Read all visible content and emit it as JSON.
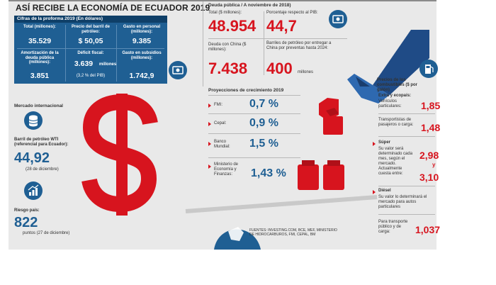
{
  "title": "ASÍ RECIBE LA ECONOMÍA DE ECUADOR 2019",
  "proforma": {
    "heading": "Cifras de la proforma 2019 (En dólares)",
    "total_label": "Total (millones):",
    "total_value": "35.529",
    "oil_label": "Precio del barril de petróleo:",
    "oil_value": "$ 50,05",
    "personnel_label": "Gasto en personal (millones):",
    "personnel_value": "9.385",
    "amort_label": "Amortización de la deuda pública (millones):",
    "amort_value": "3.851",
    "deficit_label": "Déficit fiscal:",
    "deficit_value": "3.639",
    "deficit_unit": "millones",
    "deficit_note": "(3,2 % del PIB)",
    "subsidies_label": "Gasto en subsidios (millones):",
    "subsidies_value": "1.742,9"
  },
  "market": {
    "heading": "Mercado internacional",
    "wti_label": "Barril de petróleo WTI (referencial para Ecuador):",
    "wti_value": "44,92",
    "wti_date": "(28 de diciembre)",
    "risk_label": "Riesgo país:",
    "risk_value": "822",
    "risk_date": "puntos (27 de diciembre)"
  },
  "debt": {
    "heading": "Deuda pública / A noviembre de 2018)",
    "total_label": "Total ($ millones):",
    "total_value": "48.954",
    "pib_label": "Porcentaje respecto al PIB:",
    "pib_value": "44,7",
    "china_label": "Deuda con China ($ millones):",
    "china_value": "7.438",
    "barrels_label": "Barriles de petróleo por entregar a China por preventas hasta 2024:",
    "barrels_value": "400",
    "barrels_unit": "millones"
  },
  "projections": {
    "heading": "Proyecciones de crecimiento 2019",
    "rows": [
      {
        "name": "FMI:",
        "value": "0,7 %"
      },
      {
        "name": "Cepal:",
        "value": "0,9 %"
      },
      {
        "name": "Banco Mundial:",
        "value": "1,5 %"
      },
      {
        "name": "Ministerio de Economía y Finanzas:",
        "value": "1,43 %"
      }
    ]
  },
  "fuel": {
    "heading": "Precios de los combustibles ($ por galón)",
    "extra_title": "Extra y ecopaís:",
    "extra_1_label": "Vehículos particulares:",
    "extra_1_value": "1,85",
    "extra_2_label": "Transportistas de pasajeros o carga:",
    "extra_2_value": "1,48",
    "super_title": "Súper",
    "super_label": "Su valor será determinado cada mes, según el mercado. Actualmente cuesta entre:",
    "super_value_1": "2,98",
    "super_y": "y",
    "super_value_2": "3,10",
    "diesel_title": "Diésel",
    "diesel_label": "Su valor lo determinará el mercado para autos particulares",
    "diesel_2_label": "Para transporte público y de carga:",
    "diesel_2_value": "1,037"
  },
  "sources": "FUENTES: INVESTING.COM, BCE, MEF, MINISTERIO DE HIDROCARBUROS, FMI, CEPAL, BM",
  "colors": {
    "red": "#d7141e",
    "blue": "#1f5f93",
    "dark_blue": "#0f3f68",
    "background": "#e9e9e9"
  },
  "icons": [
    "money-icon",
    "database-icon",
    "growth-chart-icon",
    "gas-pump-icon",
    "dollar-sign-icon",
    "hand-icon",
    "weights-icon",
    "globe-icon",
    "scale-icon"
  ]
}
